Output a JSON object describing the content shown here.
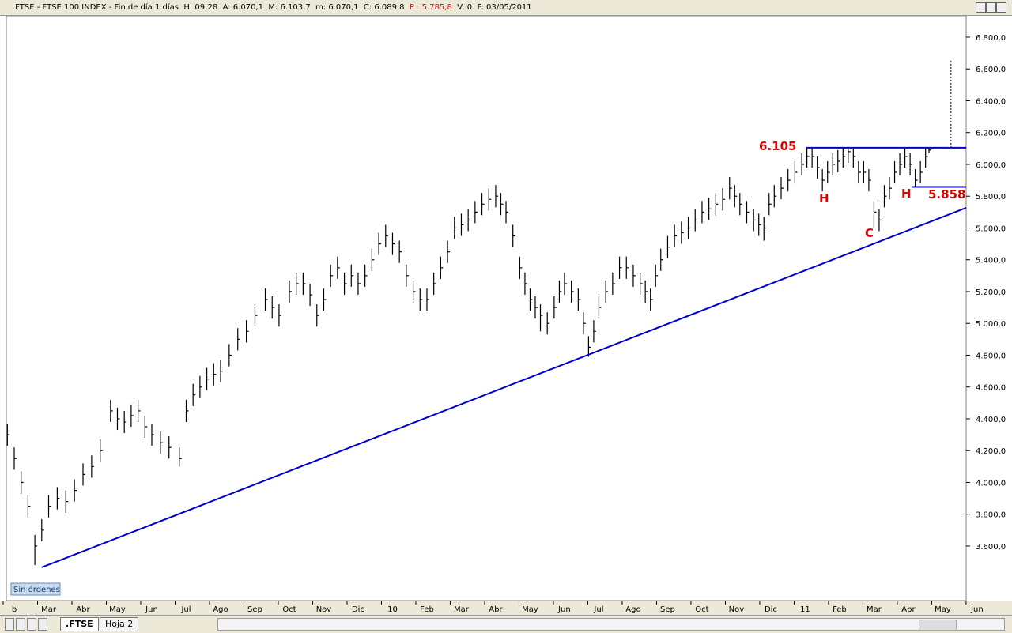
{
  "window": {
    "header": {
      "main": ".FTSE - FTSE 100 INDEX - Fin de día 1 días  H: 09:28  A: 6.070,1  M: 6.103,7  m: 6.070,1  C: 6.089,8",
      "alert": "P : 5.785,8",
      "tail": "V: 0  F: 03/05/2011"
    },
    "status": "Sin órdenes",
    "tabs": [
      ".FTSE",
      "Hoja 2"
    ]
  },
  "chart_data": {
    "type": "ohlc",
    "color": "#000000",
    "line_color": "#0000cc",
    "annotation_color": "#e00000",
    "xlim": [
      -0.23,
      27.68
    ],
    "ylim": [
      3257,
      6934
    ],
    "yticks": [
      {
        "value": 3600,
        "label": "3.600,0"
      },
      {
        "value": 3800,
        "label": "3.800,0"
      },
      {
        "value": 4000,
        "label": "4.000,0"
      },
      {
        "value": 4200,
        "label": "4.200,0"
      },
      {
        "value": 4400,
        "label": "4.400,0"
      },
      {
        "value": 4600,
        "label": "4.600,0"
      },
      {
        "value": 4800,
        "label": "4.800,0"
      },
      {
        "value": 5000,
        "label": "5.000,0"
      },
      {
        "value": 5200,
        "label": "5.200,0"
      },
      {
        "value": 5400,
        "label": "5.400,0"
      },
      {
        "value": 5600,
        "label": "5.600,0"
      },
      {
        "value": 5800,
        "label": "5.800,0"
      },
      {
        "value": 6000,
        "label": "6.000,0"
      },
      {
        "value": 6200,
        "label": "6.200,0"
      },
      {
        "value": 6400,
        "label": "6.400,0"
      },
      {
        "value": 6600,
        "label": "6.600,0"
      },
      {
        "value": 6800,
        "label": "6.800,0"
      }
    ],
    "xticks": [
      {
        "value": 0,
        "label": "b"
      },
      {
        "value": 1,
        "label": "Mar"
      },
      {
        "value": 2,
        "label": "Abr"
      },
      {
        "value": 3,
        "label": "May"
      },
      {
        "value": 4,
        "label": "Jun"
      },
      {
        "value": 5,
        "label": "Jul"
      },
      {
        "value": 6,
        "label": "Ago"
      },
      {
        "value": 7,
        "label": "Sep"
      },
      {
        "value": 8,
        "label": "Oct"
      },
      {
        "value": 9,
        "label": "Nov"
      },
      {
        "value": 10,
        "label": "Dic"
      },
      {
        "value": 11,
        "label": "10"
      },
      {
        "value": 12,
        "label": "Feb"
      },
      {
        "value": 13,
        "label": "Mar"
      },
      {
        "value": 14,
        "label": "Abr"
      },
      {
        "value": 15,
        "label": "May"
      },
      {
        "value": 16,
        "label": "Jun"
      },
      {
        "value": 17,
        "label": "Jul"
      },
      {
        "value": 18,
        "label": "Ago"
      },
      {
        "value": 19,
        "label": "Sep"
      },
      {
        "value": 20,
        "label": "Oct"
      },
      {
        "value": 21,
        "label": "Nov"
      },
      {
        "value": 22,
        "label": "Dic"
      },
      {
        "value": 23,
        "label": "11"
      },
      {
        "value": 24,
        "label": "Feb"
      },
      {
        "value": 25,
        "label": "Mar"
      },
      {
        "value": 26,
        "label": "Abr"
      },
      {
        "value": 27,
        "label": "May"
      },
      {
        "value": 28,
        "label": "Jun"
      }
    ],
    "x": [
      -0.2,
      0,
      0.2,
      0.4,
      0.6,
      0.8,
      1,
      1.25,
      1.5,
      1.75,
      2,
      2.25,
      2.5,
      2.8,
      3,
      3.2,
      3.4,
      3.6,
      3.8,
      4,
      4.25,
      4.5,
      4.8,
      5,
      5.2,
      5.4,
      5.6,
      5.8,
      6,
      6.25,
      6.5,
      6.75,
      7,
      7.3,
      7.5,
      7.7,
      8,
      8.2,
      8.4,
      8.6,
      8.8,
      9,
      9.2,
      9.4,
      9.6,
      9.8,
      10,
      10.2,
      10.4,
      10.6,
      10.8,
      11,
      11.2,
      11.4,
      11.6,
      11.8,
      12,
      12.2,
      12.4,
      12.6,
      12.8,
      13,
      13.2,
      13.4,
      13.6,
      13.8,
      14,
      14.15,
      14.3,
      14.5,
      14.7,
      14.85,
      15,
      15.15,
      15.3,
      15.5,
      15.7,
      15.85,
      16,
      16.2,
      16.4,
      16.55,
      16.7,
      16.85,
      17,
      17.2,
      17.4,
      17.6,
      17.8,
      18,
      18.2,
      18.35,
      18.5,
      18.65,
      18.8,
      19,
      19.2,
      19.4,
      19.6,
      19.8,
      20,
      20.2,
      20.4,
      20.6,
      20.8,
      20.95,
      21.1,
      21.3,
      21.5,
      21.65,
      21.8,
      21.95,
      22.1,
      22.3,
      22.5,
      22.7,
      22.9,
      23.05,
      23.2,
      23.35,
      23.5,
      23.65,
      23.8,
      23.95,
      24.1,
      24.25,
      24.4,
      24.55,
      24.7,
      24.85,
      25,
      25.15,
      25.3,
      25.45,
      25.6,
      25.75,
      25.9,
      26.05,
      26.2,
      26.35,
      26.5,
      26.6
    ],
    "high": [
      4370,
      4220,
      4070,
      3920,
      3670,
      3770,
      3920,
      3970,
      3950,
      4020,
      4120,
      4170,
      4270,
      4520,
      4470,
      4450,
      4490,
      4520,
      4420,
      4370,
      4320,
      4290,
      4220,
      4520,
      4620,
      4670,
      4720,
      4750,
      4770,
      4870,
      4970,
      5020,
      5120,
      5220,
      5170,
      5120,
      5270,
      5320,
      5320,
      5250,
      5120,
      5220,
      5370,
      5420,
      5320,
      5370,
      5320,
      5370,
      5470,
      5570,
      5620,
      5570,
      5520,
      5370,
      5270,
      5220,
      5220,
      5320,
      5420,
      5520,
      5670,
      5690,
      5720,
      5770,
      5820,
      5850,
      5870,
      5820,
      5770,
      5620,
      5420,
      5320,
      5220,
      5170,
      5120,
      5070,
      5170,
      5270,
      5320,
      5270,
      5220,
      5070,
      4920,
      5020,
      5170,
      5270,
      5320,
      5420,
      5420,
      5370,
      5320,
      5270,
      5220,
      5370,
      5470,
      5550,
      5620,
      5640,
      5670,
      5720,
      5770,
      5790,
      5820,
      5850,
      5920,
      5870,
      5820,
      5770,
      5720,
      5690,
      5670,
      5820,
      5870,
      5920,
      5970,
      6020,
      6070,
      6100,
      6100,
      6050,
      5970,
      6020,
      6070,
      6090,
      6100,
      6105,
      6100,
      6020,
      6020,
      5970,
      5770,
      5720,
      5870,
      5920,
      6020,
      6070,
      6100,
      6070,
      5970,
      6020,
      6100,
      6104
    ],
    "low": [
      4230,
      4080,
      3930,
      3780,
      3480,
      3630,
      3780,
      3830,
      3810,
      3880,
      3980,
      4030,
      4130,
      4380,
      4330,
      4310,
      4350,
      4380,
      4280,
      4230,
      4180,
      4150,
      4100,
      4380,
      4480,
      4530,
      4580,
      4610,
      4630,
      4730,
      4830,
      4880,
      4980,
      5080,
      5030,
      4980,
      5130,
      5180,
      5180,
      5110,
      4980,
      5080,
      5230,
      5280,
      5180,
      5230,
      5180,
      5230,
      5330,
      5430,
      5480,
      5430,
      5380,
      5230,
      5130,
      5080,
      5080,
      5180,
      5280,
      5380,
      5530,
      5550,
      5580,
      5630,
      5680,
      5710,
      5730,
      5680,
      5630,
      5480,
      5280,
      5180,
      5080,
      5030,
      4950,
      4930,
      5030,
      5130,
      5180,
      5130,
      5080,
      4930,
      4790,
      4880,
      5030,
      5130,
      5180,
      5280,
      5280,
      5230,
      5180,
      5130,
      5080,
      5230,
      5330,
      5410,
      5480,
      5500,
      5530,
      5580,
      5630,
      5650,
      5680,
      5710,
      5780,
      5730,
      5680,
      5630,
      5580,
      5550,
      5520,
      5680,
      5730,
      5780,
      5830,
      5880,
      5930,
      5980,
      5980,
      5910,
      5830,
      5880,
      5930,
      5950,
      5980,
      6010,
      5980,
      5880,
      5880,
      5830,
      5600,
      5580,
      5730,
      5780,
      5880,
      5930,
      5980,
      5930,
      5858,
      5880,
      5980,
      6070
    ],
    "close": [
      4300,
      4150,
      4000,
      3850,
      3600,
      3700,
      3850,
      3900,
      3880,
      3950,
      4050,
      4100,
      4200,
      4450,
      4400,
      4380,
      4420,
      4450,
      4350,
      4300,
      4250,
      4220,
      4150,
      4450,
      4550,
      4600,
      4650,
      4680,
      4700,
      4800,
      4900,
      4950,
      5050,
      5150,
      5100,
      5050,
      5200,
      5250,
      5250,
      5180,
      5050,
      5150,
      5300,
      5350,
      5250,
      5300,
      5250,
      5300,
      5400,
      5500,
      5550,
      5500,
      5450,
      5300,
      5200,
      5150,
      5150,
      5250,
      5350,
      5450,
      5600,
      5620,
      5650,
      5700,
      5750,
      5780,
      5800,
      5750,
      5700,
      5550,
      5350,
      5250,
      5150,
      5100,
      5050,
      5000,
      5100,
      5200,
      5250,
      5200,
      5150,
      5000,
      4850,
      4950,
      5100,
      5200,
      5250,
      5350,
      5350,
      5300,
      5250,
      5200,
      5150,
      5300,
      5400,
      5480,
      5550,
      5570,
      5600,
      5650,
      5700,
      5720,
      5750,
      5780,
      5850,
      5800,
      5750,
      5700,
      5650,
      5620,
      5600,
      5750,
      5800,
      5850,
      5900,
      5950,
      6000,
      6050,
      6050,
      5980,
      5900,
      5950,
      6000,
      6020,
      6050,
      6080,
      6050,
      5950,
      5950,
      5900,
      5700,
      5650,
      5800,
      5850,
      5950,
      6000,
      6050,
      6000,
      5900,
      5950,
      6050,
      6090
    ],
    "lines": [
      {
        "x": [
          0.8,
          27.68
        ],
        "y": [
          3466,
          5727
        ],
        "style": "solid"
      },
      {
        "x": [
          23.03,
          27.68
        ],
        "y": [
          6105,
          6105
        ],
        "style": "solid"
      },
      {
        "x": [
          26.09,
          27.68
        ],
        "y": [
          5858,
          5858
        ],
        "style": "solid"
      },
      {
        "x": [
          27.24,
          27.24
        ],
        "y": [
          6105,
          6661
        ],
        "style": "dotted"
      }
    ],
    "annotations": [
      "6.105",
      "H",
      "C",
      "H",
      "5.858"
    ]
  }
}
